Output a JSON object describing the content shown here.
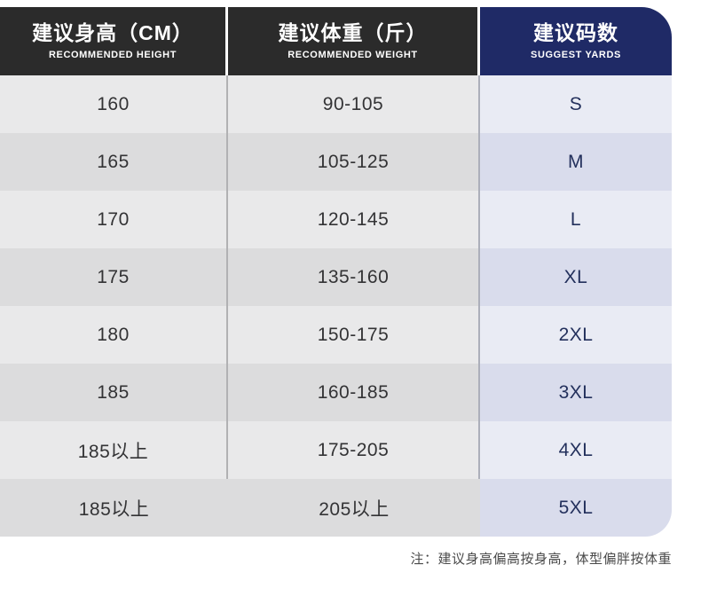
{
  "table": {
    "columns": [
      {
        "title": "建议身高（CM）",
        "subtitle": "RECOMMENDED HEIGHT"
      },
      {
        "title": "建议体重（斤）",
        "subtitle": "RECOMMENDED WEIGHT"
      },
      {
        "title": "建议码数",
        "subtitle": "SUGGEST YARDS"
      }
    ],
    "rows": [
      {
        "height": "160",
        "weight": "90-105",
        "size": "S"
      },
      {
        "height": "165",
        "weight": "105-125",
        "size": "M"
      },
      {
        "height": "170",
        "weight": "120-145",
        "size": "L"
      },
      {
        "height": "175",
        "weight": "135-160",
        "size": "XL"
      },
      {
        "height": "180",
        "weight": "150-175",
        "size": "2XL"
      },
      {
        "height": "185",
        "weight": "160-185",
        "size": "3XL"
      },
      {
        "height": "185以上",
        "weight": "175-205",
        "size": "4XL"
      },
      {
        "height": "185以上",
        "weight": "205以上",
        "size": "5XL"
      }
    ],
    "note": "注：建议身高偏高按身高，体型偏胖按体重"
  },
  "colors": {
    "header_dark": "#2b2b2b",
    "header_navy": "#1f2a66",
    "row_light": "#e9e9ea",
    "row_dark": "#dcdcdd",
    "size_col_light": "#e9ebf4",
    "size_col_dark": "#d9dcec",
    "size_text": "#23305c",
    "body_text": "#333335",
    "note_text": "#4a4a4a"
  },
  "chart_data": {
    "type": "table",
    "columns": [
      "建议身高（CM） / RECOMMENDED HEIGHT",
      "建议体重（斤） / RECOMMENDED WEIGHT",
      "建议码数 / SUGGEST YARDS"
    ],
    "rows": [
      [
        "160",
        "90-105",
        "S"
      ],
      [
        "165",
        "105-125",
        "M"
      ],
      [
        "170",
        "120-145",
        "L"
      ],
      [
        "175",
        "135-160",
        "XL"
      ],
      [
        "180",
        "150-175",
        "2XL"
      ],
      [
        "185",
        "160-185",
        "3XL"
      ],
      [
        "185以上",
        "175-205",
        "4XL"
      ],
      [
        "185以上",
        "205以上",
        "5XL"
      ]
    ],
    "note": "注：建议身高偏高按身高，体型偏胖按体重"
  }
}
